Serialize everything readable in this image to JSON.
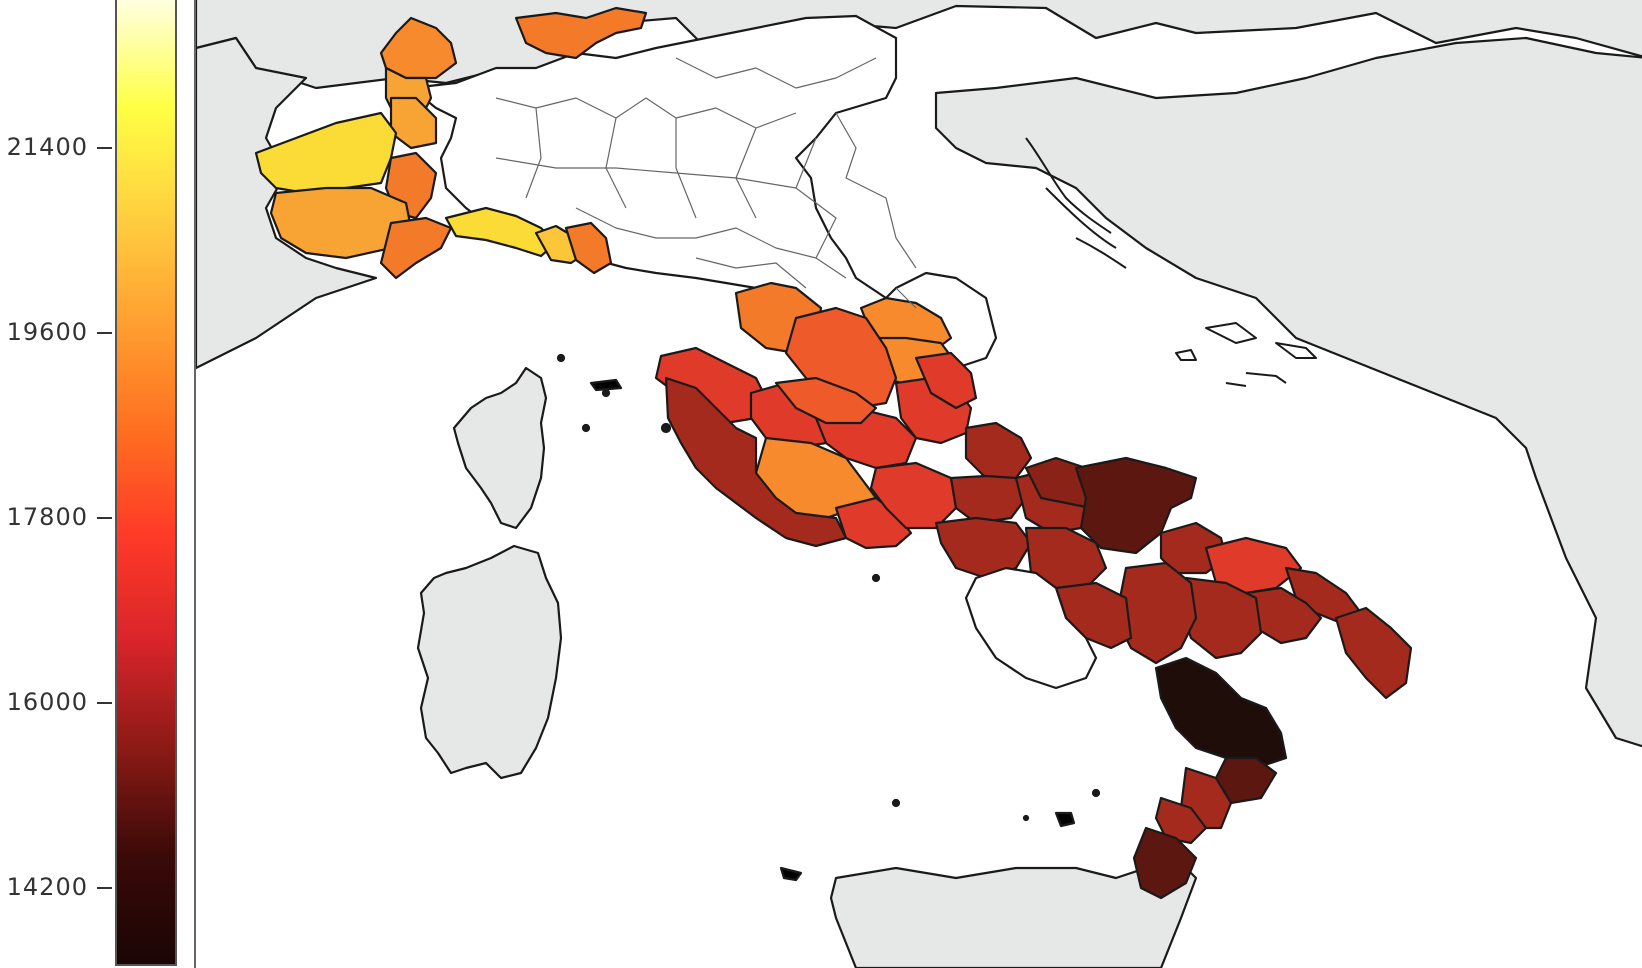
{
  "colorbar": {
    "ticks": [
      "21400",
      "19600",
      "17800",
      "16000",
      "14200"
    ],
    "colors": [
      "#ffffe0",
      "#ffff44",
      "#ffd040",
      "#ffa030",
      "#ff7020",
      "#ff3a28",
      "#d8242a",
      "#8a1a15",
      "#3a0a08",
      "#1a0504"
    ]
  },
  "map": {
    "land_color": "#e6e8e8",
    "sea_color": "#ffffff",
    "unfilled_color": "#ffffff",
    "border_color": "#1a1a1a"
  }
}
